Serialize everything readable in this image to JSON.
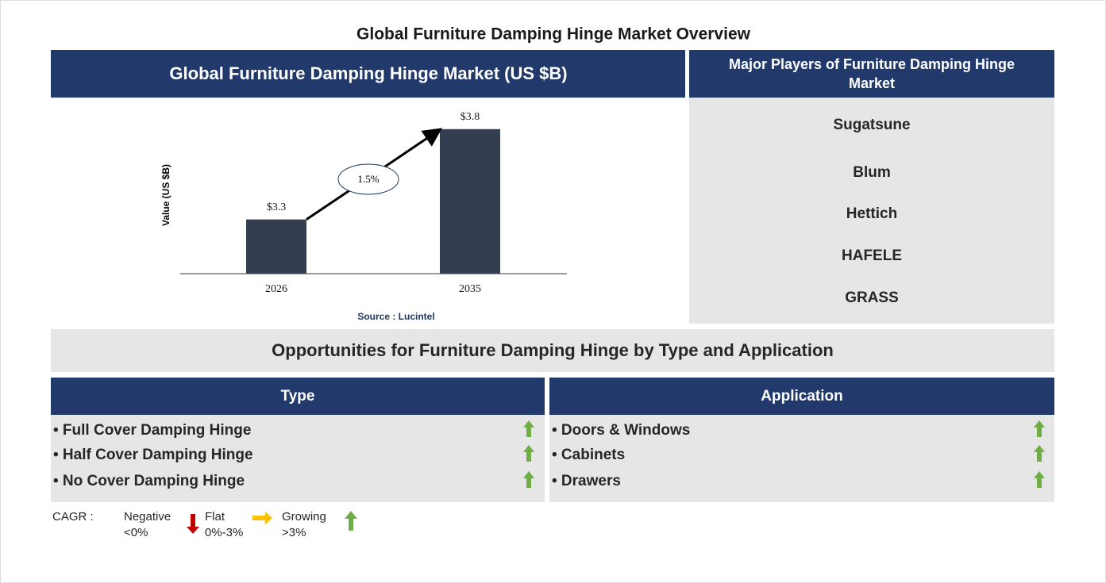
{
  "header": {
    "title": "Global Furniture Damping Hinge Market Overview"
  },
  "market_panel": {
    "title": "Global Furniture Damping Hinge Market (US $B)"
  },
  "chart_data": {
    "type": "bar",
    "categories": [
      "2026",
      "2035"
    ],
    "values": [
      3.3,
      3.8
    ],
    "value_labels": [
      "$3.3",
      "$3.8"
    ],
    "color": "#333f50",
    "ylabel": "Value (US $B)",
    "ylim": [
      3,
      3.9
    ],
    "annotation": "1.5%",
    "source": "Source : Lucintel"
  },
  "players": {
    "title": "Major Players of Furniture Damping Hinge Market",
    "items": [
      "Sugatsune",
      "Blum",
      "Hettich",
      "HAFELE",
      "GRASS"
    ]
  },
  "opportunities": {
    "title": "Opportunities for Furniture Damping Hinge by Type and Application"
  },
  "type": {
    "title": "Type",
    "items": [
      "• Full Cover Damping Hinge",
      "• Half Cover Damping Hinge",
      "• No Cover Damping Hinge"
    ]
  },
  "application": {
    "title": "Application",
    "items": [
      "• Doors & Windows",
      "• Cabinets",
      "• Drawers"
    ]
  },
  "legend": {
    "label": "CAGR :",
    "items": [
      {
        "name": "Negative",
        "range": "<0%"
      },
      {
        "name": "Flat",
        "range": "0%-3%"
      },
      {
        "name": "Growing",
        "range": ">3%"
      }
    ]
  }
}
